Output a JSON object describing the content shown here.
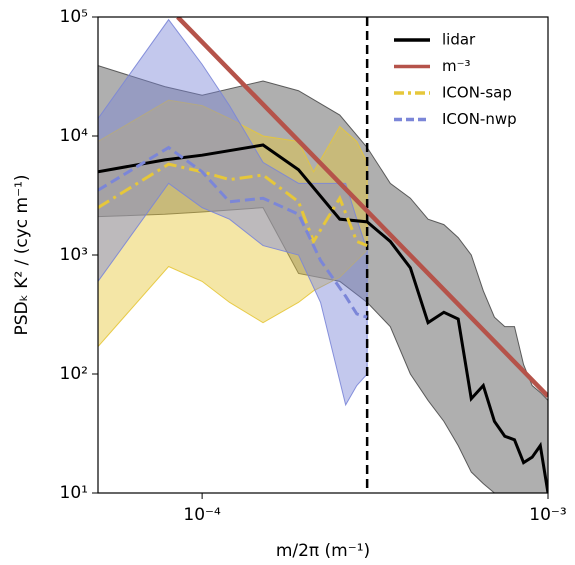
{
  "chart_data": {
    "type": "line",
    "xlabel": "m/2π (m⁻¹)",
    "ylabel": "PSDₖ K² / (cyc m⁻¹)",
    "xscale": "log",
    "yscale": "log",
    "xlim": [
      5e-05,
      0.001
    ],
    "ylim": [
      10,
      100000
    ],
    "xticks": [
      {
        "value": 0.0001,
        "label": "10⁻⁴"
      },
      {
        "value": 0.001,
        "label": "10⁻³"
      }
    ],
    "yticks": [
      {
        "value": 10,
        "label": "10¹"
      },
      {
        "value": 100,
        "label": "10²"
      },
      {
        "value": 1000,
        "label": "10³"
      },
      {
        "value": 10000,
        "label": "10⁴"
      },
      {
        "value": 100000,
        "label": "10⁵"
      }
    ],
    "vline": 0.0003,
    "legend": "upper right",
    "series": [
      {
        "name": "lidar",
        "color": "#000000",
        "linestyle": "solid",
        "band_color": "#4d4d4d",
        "x": [
          5e-05,
          7.8e-05,
          0.0001,
          0.00015,
          0.00019,
          0.00025,
          0.0003,
          0.00035,
          0.0004,
          0.00045,
          0.0005,
          0.00055,
          0.0006,
          0.00065,
          0.0007,
          0.00075,
          0.0008,
          0.00085,
          0.0009,
          0.00095,
          0.001
        ],
        "values": [
          5000,
          6300,
          6900,
          8400,
          5200,
          2000,
          1900,
          1300,
          780,
          270,
          330,
          290,
          62,
          80,
          40,
          30,
          28,
          18,
          20,
          25,
          10
        ],
        "upper": [
          39000,
          26000,
          22000,
          29000,
          24000,
          15000,
          8000,
          4000,
          3000,
          2000,
          1800,
          1400,
          1000,
          500,
          300,
          250,
          250,
          120,
          80,
          70,
          60
        ],
        "lower": [
          2100,
          2200,
          2300,
          2500,
          700,
          600,
          400,
          250,
          100,
          60,
          40,
          25,
          15,
          12,
          10,
          10,
          10,
          10,
          10,
          10,
          10
        ]
      },
      {
        "name": "m⁻³",
        "color": "#b5534a",
        "linestyle": "solid",
        "x": [
          8.5e-05,
          0.001
        ],
        "values": [
          100000,
          65
        ]
      },
      {
        "name": "ICON-sap",
        "color": "#e6c73a",
        "linestyle": "dashdot",
        "band_color": "#e6c73a",
        "x": [
          5e-05,
          8e-05,
          0.0001,
          0.00012,
          0.00015,
          0.00019,
          0.00021,
          0.00025,
          0.00028,
          0.0003
        ],
        "values": [
          2500,
          5800,
          5000,
          4300,
          4700,
          2800,
          1300,
          3000,
          1300,
          1200
        ],
        "upper": [
          9000,
          20000,
          18000,
          14000,
          10000,
          9000,
          5000,
          12000,
          9000,
          6000
        ],
        "lower": [
          170,
          800,
          600,
          400,
          270,
          400,
          500,
          650,
          900,
          1100
        ]
      },
      {
        "name": "ICON-nwp",
        "color": "#7b86d8",
        "linestyle": "dashed",
        "band_color": "#7b86d8",
        "x": [
          5e-05,
          8e-05,
          0.0001,
          0.00012,
          0.00015,
          0.00019,
          0.00022,
          0.00026,
          0.00028,
          0.0003
        ],
        "values": [
          3500,
          8000,
          5000,
          2800,
          3000,
          2200,
          900,
          450,
          320,
          300
        ],
        "upper": [
          14000,
          95000,
          40000,
          18000,
          6000,
          4000,
          4000,
          4000,
          2000,
          1100
        ],
        "lower": [
          600,
          4000,
          2500,
          2000,
          1200,
          1000,
          400,
          55,
          80,
          100
        ]
      }
    ]
  }
}
